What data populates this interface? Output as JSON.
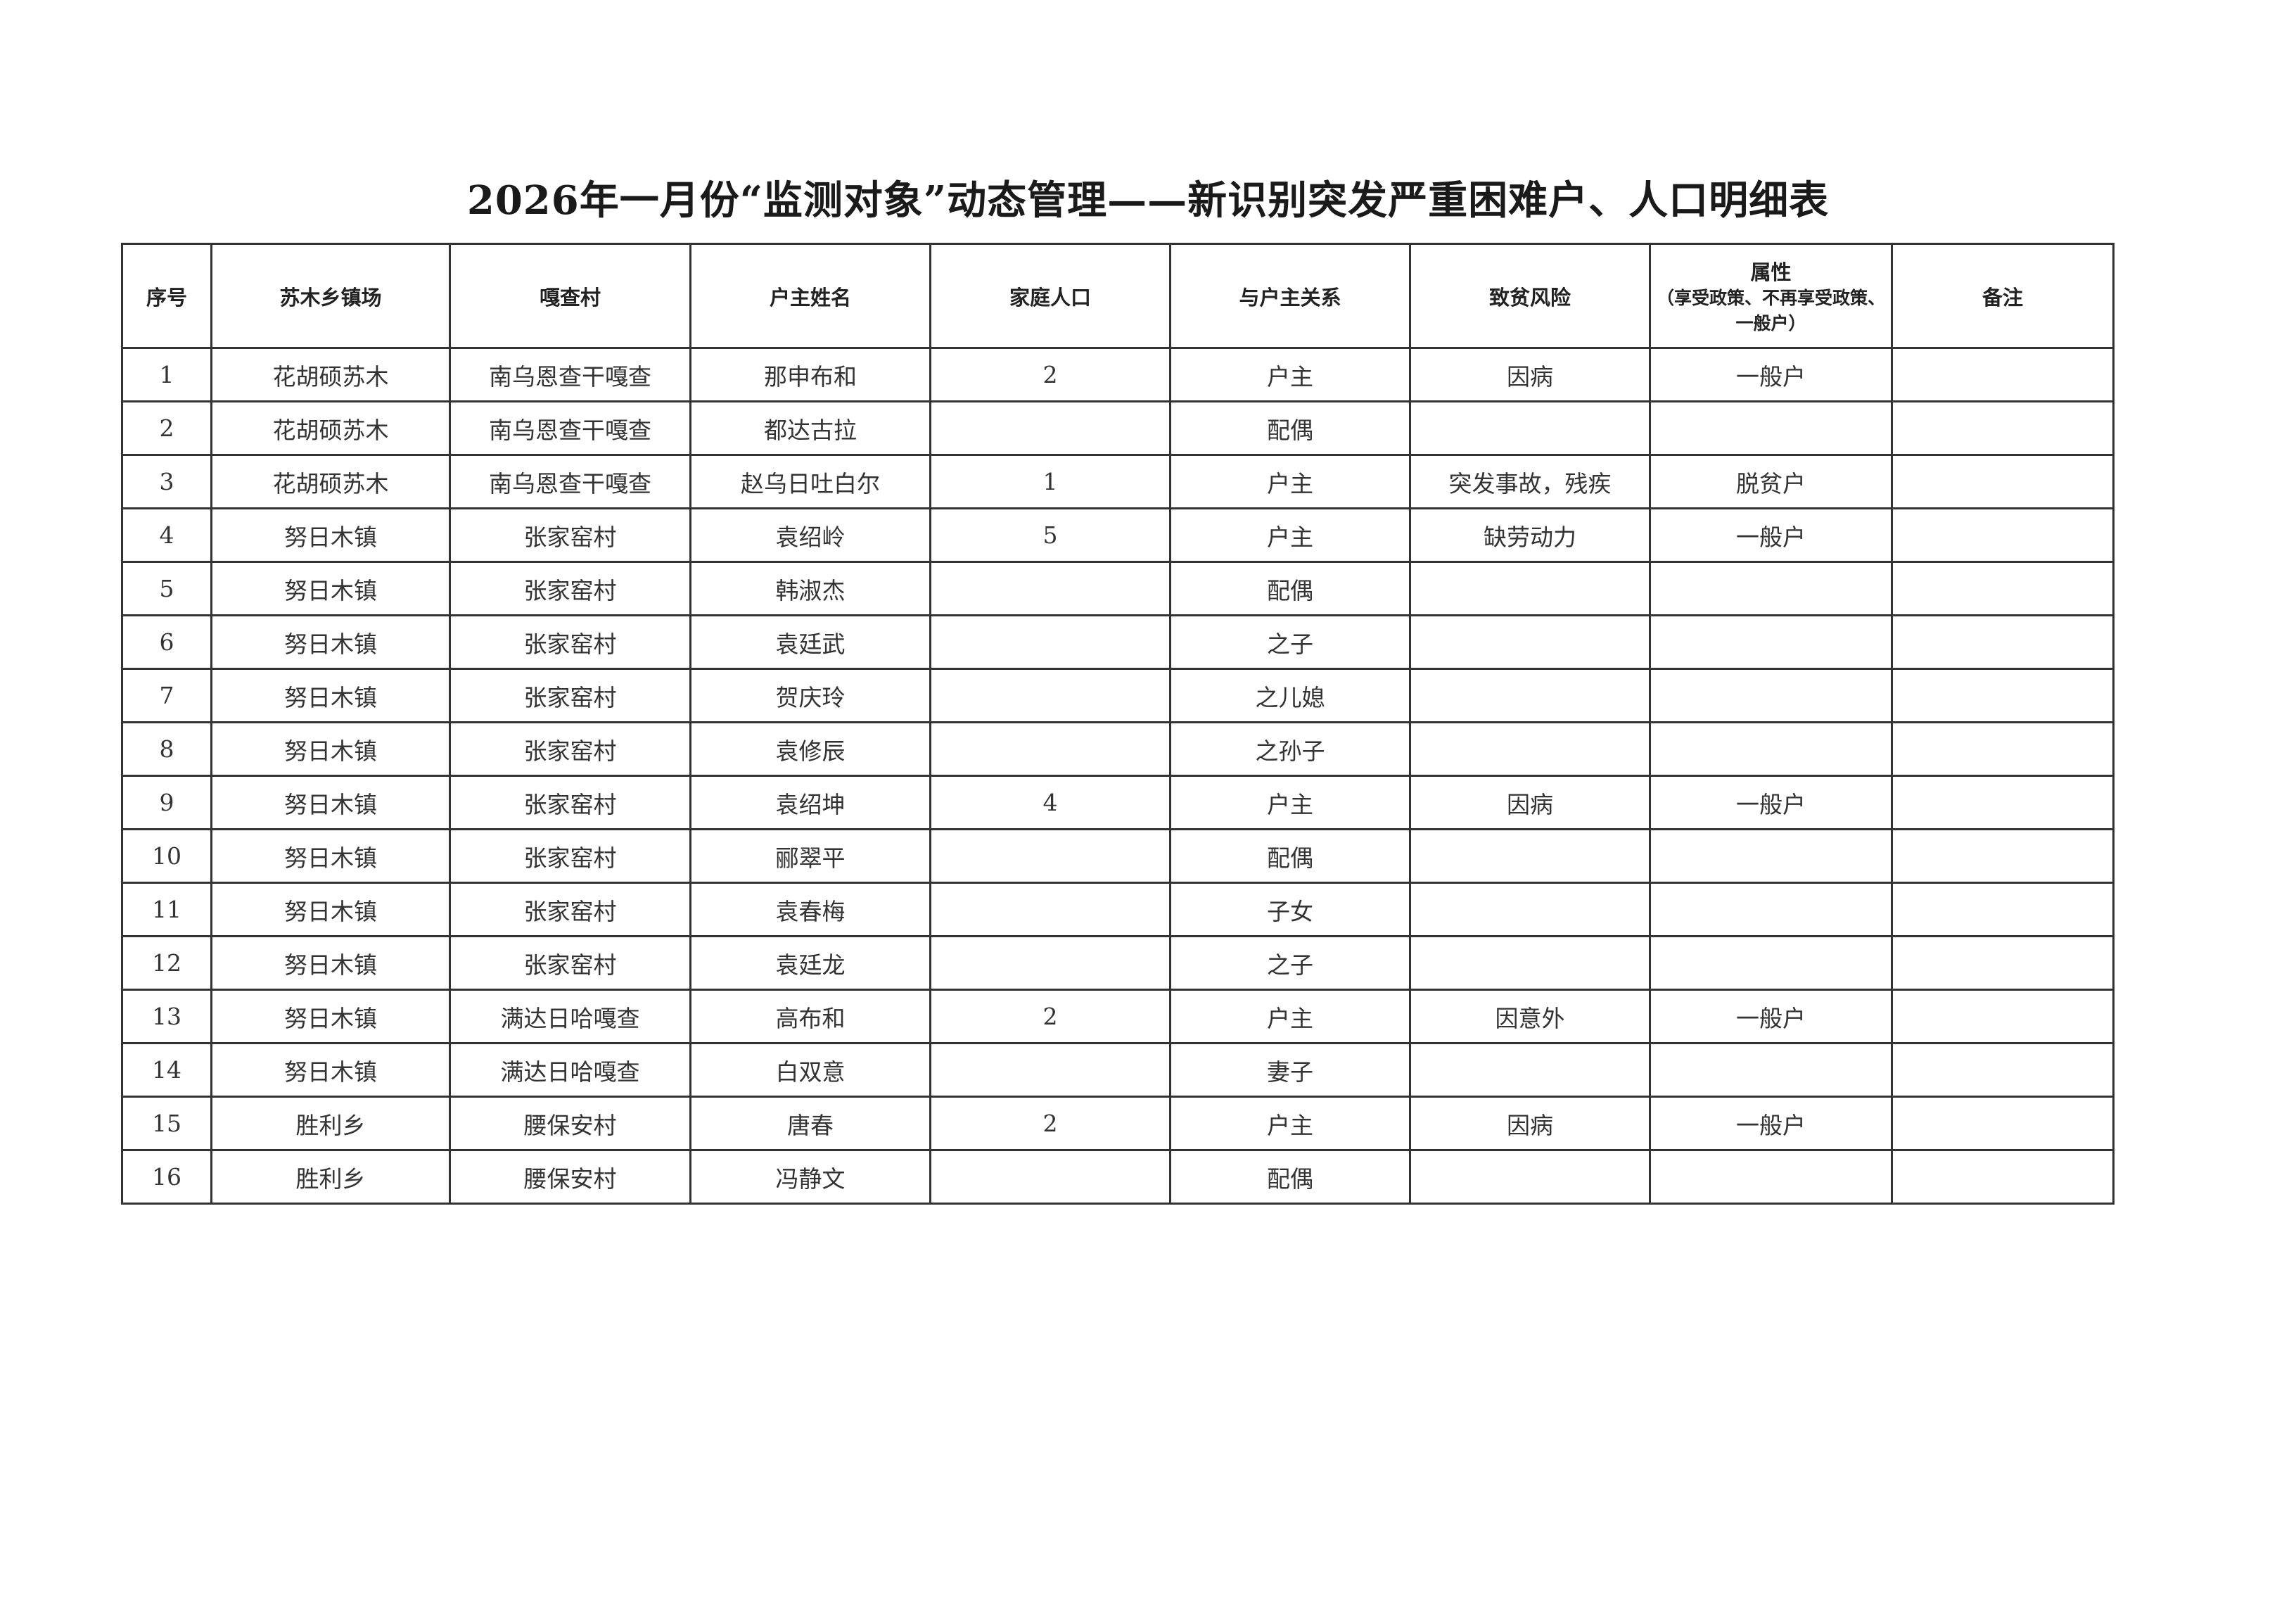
{
  "title": "2026年一月份“监测对象”动态管理——新识别突发严重困难户、人口明细表",
  "headers": [
    "序号",
    "苏木乡镇场",
    "嘎查村",
    "户主姓名",
    "家庭人口",
    "与户主关系",
    "致贫风险",
    "属性",
    "备注"
  ],
  "attribute_note": "（享受政策、不再享受政策、一般户）",
  "rows": [
    [
      "1",
      "花胡硕苏木",
      "南乌恩查干嘎查",
      "那申布和",
      "2",
      "户主",
      "因病",
      "一般户",
      ""
    ],
    [
      "2",
      "花胡硕苏木",
      "南乌恩查干嘎查",
      "都达古拉",
      "",
      "配偶",
      "",
      "",
      ""
    ],
    [
      "3",
      "花胡硕苏木",
      "南乌恩查干嘎查",
      "赵乌日吐白尔",
      "1",
      "户主",
      "突发事故，残疾",
      "脱贫户",
      ""
    ],
    [
      "4",
      "努日木镇",
      "张家窑村",
      "袁绍岭",
      "5",
      "户主",
      "缺劳动力",
      "一般户",
      ""
    ],
    [
      "5",
      "努日木镇",
      "张家窑村",
      "韩淑杰",
      "",
      "配偶",
      "",
      "",
      ""
    ],
    [
      "6",
      "努日木镇",
      "张家窑村",
      "袁廷武",
      "",
      "之子",
      "",
      "",
      ""
    ],
    [
      "7",
      "努日木镇",
      "张家窑村",
      "贺庆玲",
      "",
      "之儿媳",
      "",
      "",
      ""
    ],
    [
      "8",
      "努日木镇",
      "张家窑村",
      "袁修辰",
      "",
      "之孙子",
      "",
      "",
      ""
    ],
    [
      "9",
      "努日木镇",
      "张家窑村",
      "袁绍坤",
      "4",
      "户主",
      "因病",
      "一般户",
      ""
    ],
    [
      "10",
      "努日木镇",
      "张家窑村",
      "郦翠平",
      "",
      "配偶",
      "",
      "",
      ""
    ],
    [
      "11",
      "努日木镇",
      "张家窑村",
      "袁春梅",
      "",
      "子女",
      "",
      "",
      ""
    ],
    [
      "12",
      "努日木镇",
      "张家窑村",
      "袁廷龙",
      "",
      "之子",
      "",
      "",
      ""
    ],
    [
      "13",
      "努日木镇",
      "满达日哈嘎查",
      "高布和",
      "2",
      "户主",
      "因意外",
      "一般户",
      ""
    ],
    [
      "14",
      "努日木镇",
      "满达日哈嘎查",
      "白双意",
      "",
      "妻子",
      "",
      "",
      ""
    ],
    [
      "15",
      "胜利乡",
      "腰保安村",
      "唐春",
      "2",
      "户主",
      "因病",
      "一般户",
      ""
    ],
    [
      "16",
      "胜利乡",
      "腰保安村",
      "冯静文",
      "",
      "配偶",
      "",
      "",
      ""
    ]
  ]
}
